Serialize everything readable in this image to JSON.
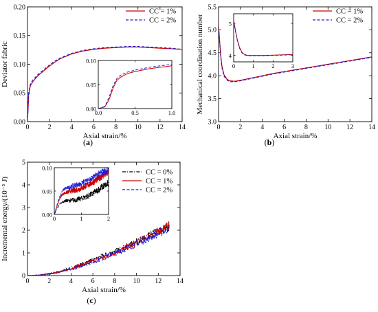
{
  "figure": {
    "background": "#ffffff"
  },
  "colors": {
    "cc0": "#000000",
    "cc1": "#cc0000",
    "cc2": "#1f1fd6"
  },
  "chart_data": [
    {
      "id": "a",
      "type": "line",
      "panel_label": "(a)",
      "panel_letter": "a",
      "xlabel": "Axial strain/%",
      "ylabel": "Deviator fabric",
      "xlim": [
        0,
        14
      ],
      "ylim": [
        0,
        0.2
      ],
      "xticks": [
        0,
        2,
        4,
        6,
        8,
        10,
        12,
        14
      ],
      "xtick_labels": [
        "0",
        "2",
        "4",
        "6",
        "8",
        "10",
        "12",
        "14"
      ],
      "yticks": [
        0,
        0.05,
        0.1,
        0.15,
        0.2
      ],
      "ytick_labels": [
        "0.00",
        "0.05",
        "0.10",
        "0.15",
        "0.20"
      ],
      "legend": {
        "position": "top-right",
        "entries": [
          "CC = 1%",
          "CC = 2%"
        ]
      },
      "series": [
        {
          "name": "CC = 1%",
          "style": "solid",
          "color": "#cc0000",
          "x": [
            0,
            0.05,
            0.1,
            0.2,
            0.3,
            0.5,
            0.8,
            1,
            1.5,
            2,
            2.5,
            3,
            3.5,
            4,
            5,
            6,
            7,
            8,
            9,
            10,
            11,
            12,
            13,
            14
          ],
          "y": [
            0,
            0.02,
            0.045,
            0.058,
            0.064,
            0.07,
            0.077,
            0.081,
            0.089,
            0.097,
            0.104,
            0.11,
            0.114,
            0.118,
            0.123,
            0.126,
            0.128,
            0.129,
            0.13,
            0.13,
            0.129,
            0.128,
            0.127,
            0.126
          ]
        },
        {
          "name": "CC = 2%",
          "style": "dashed",
          "color": "#1f1fd6",
          "x": [
            0,
            0.05,
            0.1,
            0.2,
            0.3,
            0.5,
            0.8,
            1,
            1.5,
            2,
            2.5,
            3,
            3.5,
            4,
            5,
            6,
            7,
            8,
            9,
            10,
            11,
            12,
            13,
            14
          ],
          "y": [
            0,
            0.022,
            0.048,
            0.061,
            0.067,
            0.073,
            0.079,
            0.083,
            0.091,
            0.099,
            0.106,
            0.111,
            0.115,
            0.119,
            0.124,
            0.127,
            0.129,
            0.13,
            0.131,
            0.131,
            0.13,
            0.129,
            0.128,
            0.126
          ]
        }
      ],
      "inset": {
        "xlim": [
          0,
          1.0
        ],
        "ylim": [
          0,
          0.1
        ],
        "xticks": [
          0,
          0.5,
          1.0
        ],
        "xtick_labels": [
          "0.0",
          "0.5",
          "1.0"
        ],
        "yticks": [
          0,
          0.05,
          0.1
        ],
        "ytick_labels": [
          "0.00",
          "0.05",
          "0.10"
        ],
        "series": [
          {
            "name": "CC = 1%",
            "style": "solid",
            "color": "#cc0000",
            "x": [
              0,
              0.08,
              0.1,
              0.15,
              0.2,
              0.25,
              0.3,
              0.4,
              0.5,
              0.6,
              0.7,
              0.8,
              0.9,
              1.0
            ],
            "y": [
              0,
              0.003,
              0.006,
              0.02,
              0.042,
              0.058,
              0.065,
              0.073,
              0.077,
              0.08,
              0.083,
              0.085,
              0.087,
              0.089
            ]
          },
          {
            "name": "CC = 2%",
            "style": "dashed",
            "color": "#1f1fd6",
            "x": [
              0,
              0.08,
              0.1,
              0.15,
              0.2,
              0.25,
              0.3,
              0.4,
              0.5,
              0.6,
              0.7,
              0.8,
              0.9,
              1.0
            ],
            "y": [
              0,
              0.004,
              0.008,
              0.025,
              0.047,
              0.062,
              0.069,
              0.076,
              0.08,
              0.083,
              0.086,
              0.088,
              0.09,
              0.092
            ]
          }
        ]
      }
    },
    {
      "id": "b",
      "type": "line",
      "panel_label": "(b)",
      "panel_letter": "b",
      "xlabel": "Axial strain/%",
      "ylabel": "Mechanical coordination number",
      "xlim": [
        0,
        14
      ],
      "ylim": [
        3.0,
        5.5
      ],
      "xticks": [
        0,
        2,
        4,
        6,
        8,
        10,
        12,
        14
      ],
      "xtick_labels": [
        "0",
        "2",
        "4",
        "6",
        "8",
        "10",
        "12",
        "14"
      ],
      "yticks": [
        3.0,
        3.5,
        4.0,
        4.5,
        5.0,
        5.5
      ],
      "ytick_labels": [
        "3.0",
        "3.5",
        "4.0",
        "4.5",
        "5.0",
        "5.5"
      ],
      "legend": {
        "position": "top-right",
        "entries": [
          "CC = 1%",
          "CC = 2%"
        ]
      },
      "series": [
        {
          "name": "CC = 1%",
          "style": "solid",
          "color": "#cc0000",
          "x": [
            0,
            0.1,
            0.2,
            0.3,
            0.5,
            0.8,
            1.0,
            1.5,
            2,
            3,
            4,
            5,
            6,
            7,
            8,
            9,
            10,
            11,
            12,
            13,
            14
          ],
          "y": [
            5.1,
            4.75,
            4.45,
            4.22,
            4.02,
            3.92,
            3.89,
            3.88,
            3.9,
            3.95,
            4.0,
            4.05,
            4.09,
            4.13,
            4.17,
            4.21,
            4.25,
            4.29,
            4.33,
            4.37,
            4.41
          ]
        },
        {
          "name": "CC = 2%",
          "style": "dashed",
          "color": "#1f1fd6",
          "x": [
            0,
            0.1,
            0.2,
            0.3,
            0.5,
            0.8,
            1.0,
            1.5,
            2,
            3,
            4,
            5,
            6,
            7,
            8,
            9,
            10,
            11,
            12,
            13,
            14
          ],
          "y": [
            5.06,
            4.72,
            4.42,
            4.19,
            3.99,
            3.9,
            3.87,
            3.87,
            3.89,
            3.94,
            3.99,
            4.04,
            4.08,
            4.12,
            4.16,
            4.2,
            4.24,
            4.28,
            4.32,
            4.36,
            4.4
          ]
        }
      ],
      "inset": {
        "xlim": [
          0,
          3
        ],
        "ylim": [
          3.8,
          5.3
        ],
        "xticks": [
          0,
          1,
          2,
          3
        ],
        "xtick_labels": [
          "0",
          "1",
          "2",
          "3"
        ],
        "yticks": [
          4,
          5
        ],
        "ytick_labels": [
          "4",
          "5"
        ],
        "series": [
          {
            "name": "CC = 1%",
            "style": "solid",
            "color": "#cc0000",
            "x": [
              0,
              0.1,
              0.2,
              0.3,
              0.4,
              0.5,
              0.7,
              1,
              1.5,
              2,
              2.5,
              3
            ],
            "y": [
              5.1,
              4.75,
              4.45,
              4.25,
              4.12,
              4.05,
              4.0,
              4.0,
              4.0,
              4.01,
              4.02,
              4.03
            ]
          },
          {
            "name": "CC = 2%",
            "style": "dashed",
            "color": "#1f1fd6",
            "x": [
              0,
              0.1,
              0.2,
              0.3,
              0.4,
              0.5,
              0.7,
              1,
              1.5,
              2,
              2.5,
              3
            ],
            "y": [
              5.06,
              4.72,
              4.42,
              4.22,
              4.1,
              4.03,
              3.99,
              3.99,
              3.99,
              4.0,
              4.01,
              4.02
            ]
          }
        ]
      }
    },
    {
      "id": "c",
      "type": "line",
      "panel_label": "(c)",
      "panel_letter": "c",
      "xlabel": "Axial strain/%",
      "ylabel": "Incremental energy/(10⁻⁵ J)",
      "xlim": [
        0,
        14
      ],
      "ylim": [
        0,
        5
      ],
      "xticks": [
        0,
        2,
        4,
        6,
        8,
        10,
        12,
        14
      ],
      "xtick_labels": [
        "0",
        "2",
        "4",
        "6",
        "8",
        "10",
        "12",
        "14"
      ],
      "yticks": [
        0,
        1,
        2,
        3,
        4,
        5
      ],
      "ytick_labels": [
        "0",
        "1",
        "2",
        "3",
        "4",
        "5"
      ],
      "legend": {
        "position": "top-right",
        "entries": [
          "CC = 0%",
          "CC = 1%",
          "CC = 2%"
        ]
      },
      "series": [
        {
          "name": "CC = 0%",
          "style": "dashdot",
          "color": "#000000",
          "x": [
            0,
            1,
            2,
            3,
            4,
            5,
            6,
            7,
            8,
            9,
            10,
            11,
            12,
            13
          ],
          "y": [
            0,
            0.02,
            0.08,
            0.18,
            0.33,
            0.5,
            0.68,
            0.87,
            1.05,
            1.25,
            1.48,
            1.72,
            1.96,
            2.18
          ]
        },
        {
          "name": "CC = 1%",
          "style": "solid",
          "color": "#cc0000",
          "x": [
            0,
            1,
            2,
            3,
            4,
            5,
            6,
            7,
            8,
            9,
            10,
            11,
            12,
            13
          ],
          "y": [
            0,
            0.02,
            0.08,
            0.17,
            0.31,
            0.47,
            0.64,
            0.82,
            1.01,
            1.22,
            1.45,
            1.69,
            1.95,
            2.2
          ]
        },
        {
          "name": "CC = 2%",
          "style": "dashed",
          "color": "#1f1fd6",
          "x": [
            0,
            1,
            2,
            3,
            4,
            5,
            6,
            7,
            8,
            9,
            10,
            11,
            12,
            13
          ],
          "y": [
            0,
            0.02,
            0.07,
            0.16,
            0.29,
            0.45,
            0.61,
            0.79,
            0.97,
            1.18,
            1.4,
            1.62,
            1.86,
            2.08
          ]
        }
      ],
      "inset": {
        "xlim": [
          0,
          2
        ],
        "ylim": [
          0,
          0.1
        ],
        "xticks": [
          0,
          1,
          2
        ],
        "xtick_labels": [
          "0",
          "1",
          "2"
        ],
        "yticks": [
          0,
          0.05,
          0.1
        ],
        "ytick_labels": [
          "0.00",
          "0.05",
          "0.10"
        ],
        "series": [
          {
            "name": "CC = 0%",
            "style": "dashdot",
            "color": "#000000",
            "x": [
              0,
              0.1,
              0.2,
              0.3,
              0.4,
              0.6,
              0.8,
              1.0,
              1.2,
              1.4,
              1.6,
              1.8,
              2.0
            ],
            "y": [
              0,
              0.012,
              0.022,
              0.027,
              0.029,
              0.03,
              0.031,
              0.034,
              0.038,
              0.044,
              0.052,
              0.06,
              0.066
            ]
          },
          {
            "name": "CC = 1%",
            "style": "solid",
            "color": "#cc0000",
            "x": [
              0,
              0.1,
              0.2,
              0.3,
              0.4,
              0.6,
              0.8,
              1.0,
              1.2,
              1.4,
              1.6,
              1.8,
              2.0
            ],
            "y": [
              0,
              0.018,
              0.034,
              0.043,
              0.046,
              0.05,
              0.052,
              0.056,
              0.062,
              0.068,
              0.076,
              0.084,
              0.09
            ]
          },
          {
            "name": "CC = 2%",
            "style": "dashed",
            "color": "#1f1fd6",
            "x": [
              0,
              0.1,
              0.2,
              0.3,
              0.4,
              0.6,
              0.8,
              1.0,
              1.2,
              1.4,
              1.6,
              1.8,
              2.0
            ],
            "y": [
              0,
              0.02,
              0.038,
              0.05,
              0.055,
              0.059,
              0.062,
              0.066,
              0.072,
              0.078,
              0.085,
              0.091,
              0.096
            ]
          }
        ]
      }
    }
  ]
}
